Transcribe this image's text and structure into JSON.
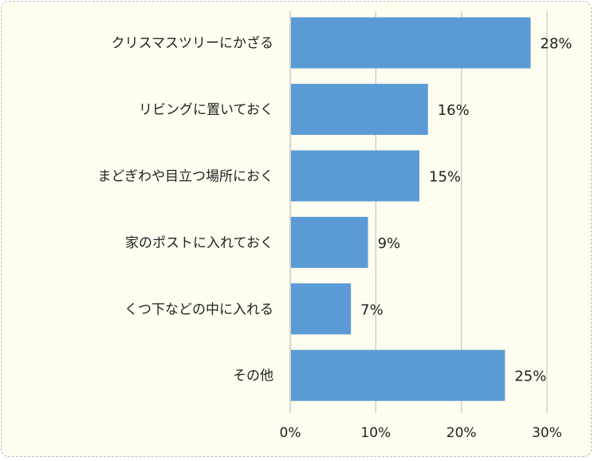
{
  "chart_data": {
    "type": "bar",
    "orientation": "horizontal",
    "categories": [
      "クリスマスツリーにかざる",
      "リビングに置いておく",
      "まどぎわや目立つ場所におく",
      "家のポストに入れておく",
      "くつ下などの中に入れる",
      "その他"
    ],
    "values": [
      28,
      16,
      15,
      9,
      7,
      25
    ],
    "value_labels": [
      "28%",
      "16%",
      "15%",
      "9%",
      "7%",
      "25%"
    ],
    "unit": "%",
    "xlim": [
      0,
      30
    ],
    "xticks": [
      0,
      10,
      20,
      30
    ],
    "xtick_labels": [
      "0%",
      "10%",
      "20%",
      "30%"
    ],
    "grid": true,
    "legend": "none",
    "title": "",
    "xlabel": "",
    "ylabel": "",
    "colors": {
      "bar": "#5b9bd5",
      "background": "#fffdf0",
      "grid": "#c9c9c9",
      "text": "#222222"
    }
  }
}
